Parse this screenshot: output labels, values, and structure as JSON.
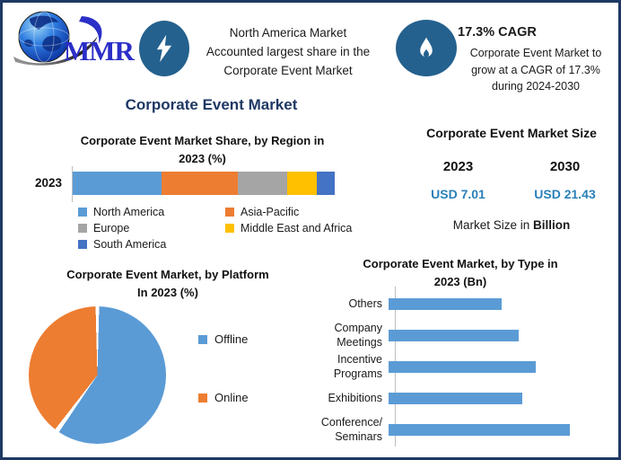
{
  "brand": {
    "name": "MMR"
  },
  "header": {
    "highlight_lines": [
      "North America Market",
      "Accounted largest share in the",
      "Corporate Event Market"
    ],
    "cagr_title": "17.3% CAGR",
    "cagr_lines": [
      "Corporate Event Market to",
      "grow at a CAGR of 17.3%",
      "during 2024-2030"
    ]
  },
  "page_title": "Corporate Event Market",
  "market_size": {
    "title": "Corporate Event Market Size",
    "year_left": "2023",
    "year_right": "2030",
    "value_left": "USD 7.01",
    "value_right": "USD 21.43",
    "caption_prefix": "Market Size in ",
    "caption_bold": "Billion",
    "value_color": "#2980B9"
  },
  "colors": {
    "border_navy": "#1F3864",
    "title_navy": "#1F3864",
    "icon_blue": "#24618E",
    "axis_gray": "#BFBFBF"
  },
  "chart_data": [
    {
      "id": "region_share",
      "type": "stacked-bar",
      "title_lines": [
        "Corporate Event Market Share, by Region in",
        "2023 (%)"
      ],
      "orientation": "horizontal",
      "category": "2023",
      "unit": "%",
      "legend_position": "bottom",
      "grid": false,
      "series": [
        {
          "name": "North America",
          "value": 34,
          "color": "#5B9BD5"
        },
        {
          "name": "Asia-Pacific",
          "value": 29,
          "color": "#ED7D31"
        },
        {
          "name": "Europe",
          "value": 19,
          "color": "#A5A5A5"
        },
        {
          "name": "Middle East and Africa",
          "value": 11,
          "color": "#FFC000"
        },
        {
          "name": "South America",
          "value": 7,
          "color": "#4472C4"
        }
      ]
    },
    {
      "id": "platform_split",
      "type": "pie",
      "title_lines": [
        "Corporate Event Market, by Platform",
        "In 2023 (%)"
      ],
      "labels": [
        "Offline",
        "Online"
      ],
      "values": [
        60,
        40
      ],
      "colors": [
        "#5B9BD5",
        "#ED7D31"
      ],
      "unit": "%",
      "legend_position": "right",
      "start_angle": 0,
      "direction": "clockwise"
    },
    {
      "id": "by_type",
      "type": "bar",
      "title_lines": [
        "Corporate Event Market, by Type in",
        "2023 (Bn)"
      ],
      "orientation": "horizontal",
      "categories": [
        "Others",
        "Company Meetings",
        "Incentive Programs",
        "Exhibitions",
        "Conference/ Seminars"
      ],
      "values": [
        1.12,
        1.29,
        1.46,
        1.33,
        1.8
      ],
      "bar_color": "#5B9BD5",
      "unit": "Bn",
      "xlim": [
        0,
        1.9
      ],
      "grid": false
    }
  ]
}
